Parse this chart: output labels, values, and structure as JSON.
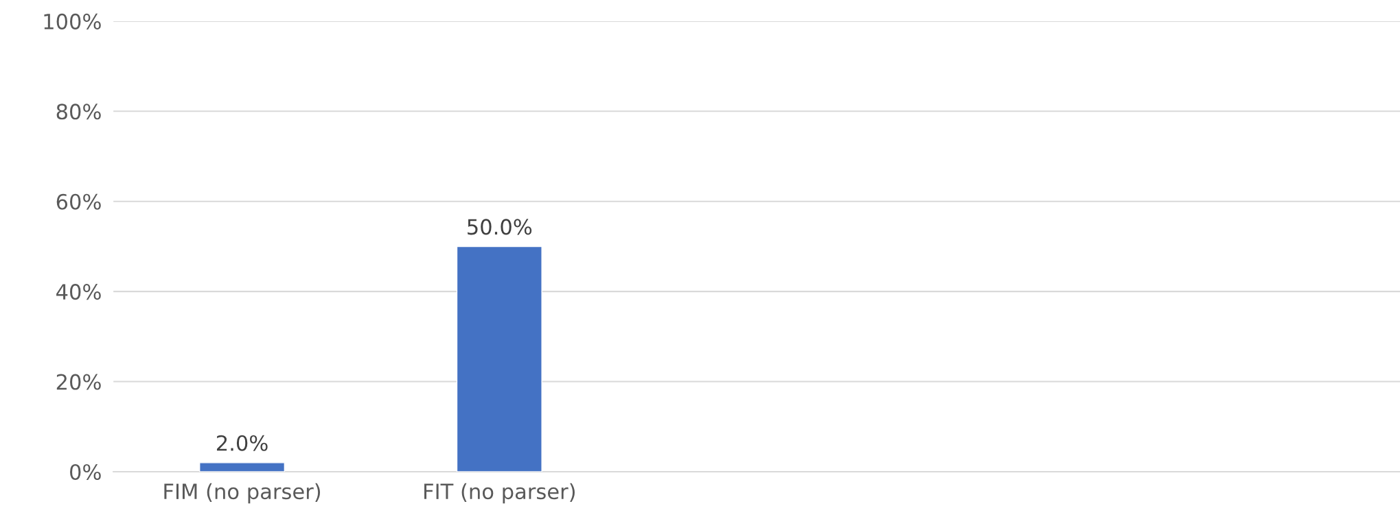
{
  "chart_data": {
    "type": "bar",
    "categories": [
      "FIM (no parser)",
      "FIT (no parser)",
      null,
      null,
      null
    ],
    "values": [
      2.0,
      50.0,
      null,
      null,
      null
    ],
    "value_labels": [
      "2.0%",
      "50.0%",
      null,
      null,
      null
    ],
    "color": "#4472c4",
    "ylim": [
      0,
      100
    ],
    "yticks": [
      {
        "value": 0,
        "label": "0%"
      },
      {
        "value": 20,
        "label": "20%"
      },
      {
        "value": 40,
        "label": "40%"
      },
      {
        "value": 60,
        "label": "60%"
      },
      {
        "value": 80,
        "label": "80%"
      },
      {
        "value": 100,
        "label": "100%"
      }
    ],
    "grid": "y"
  }
}
